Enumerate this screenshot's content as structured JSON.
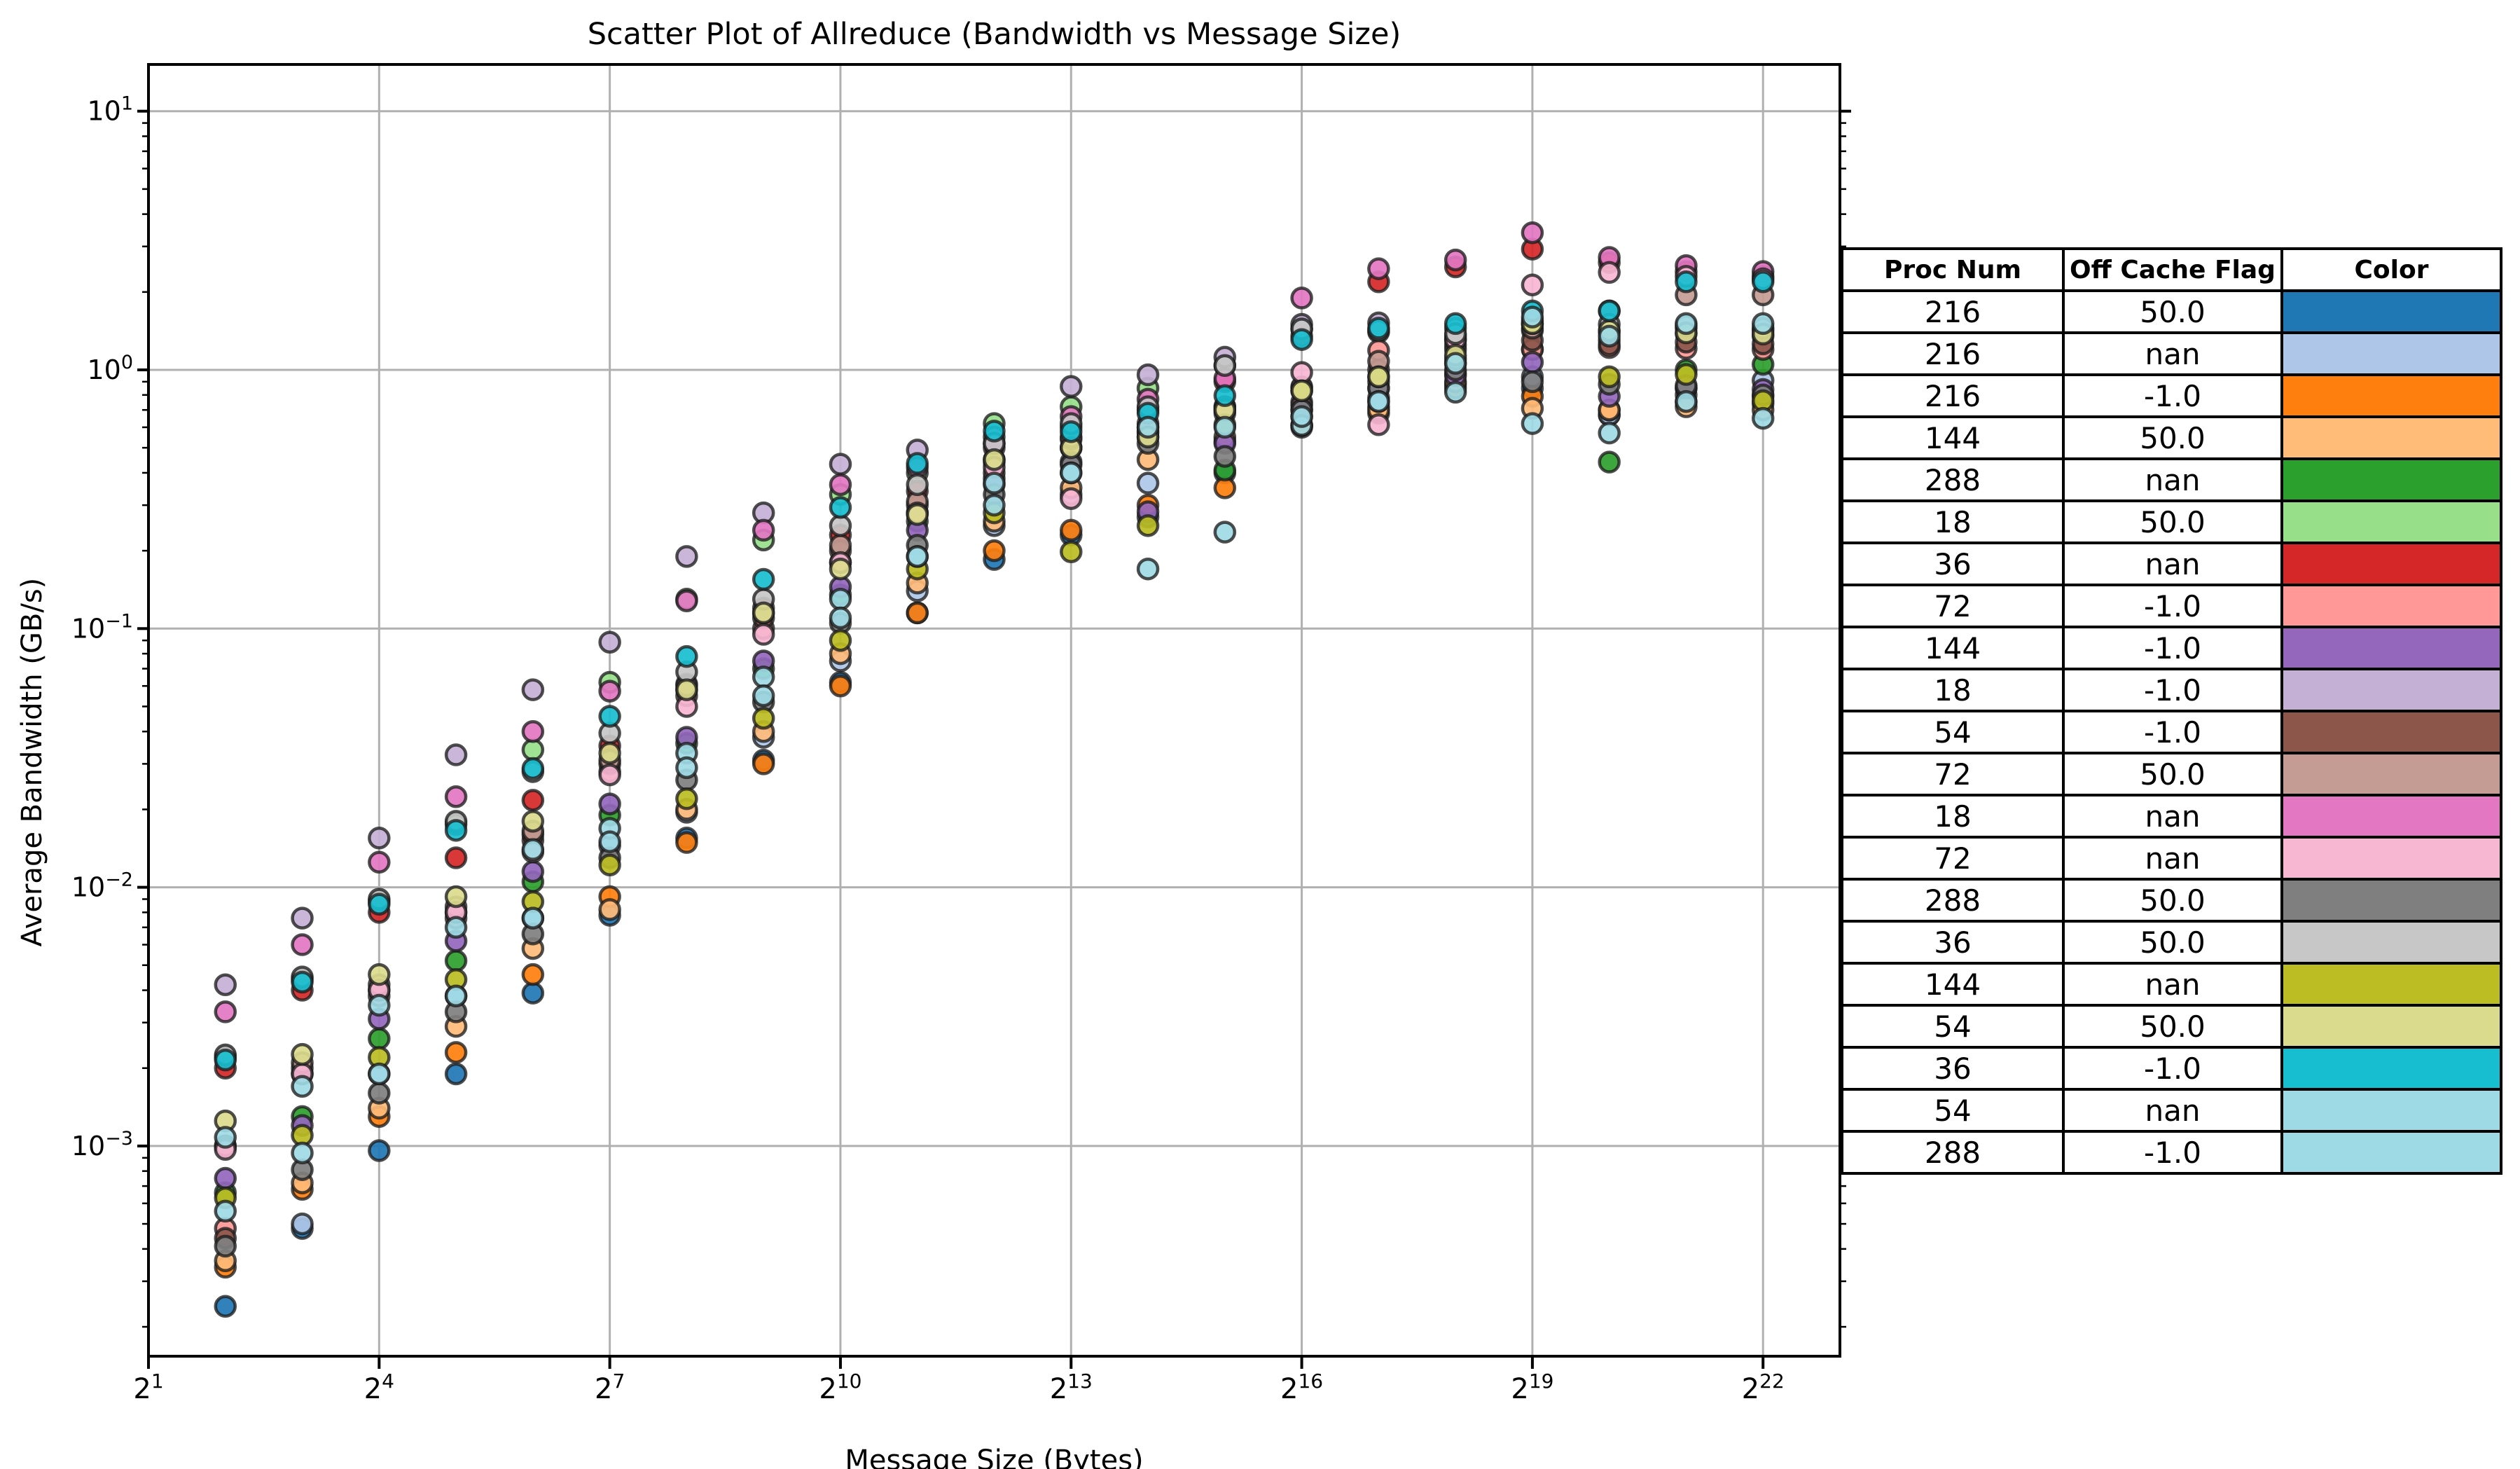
{
  "title": "Scatter Plot of Allreduce (Bandwidth vs Message Size)",
  "x_axis": {
    "label": "Message Size (Bytes)",
    "scale": "log2",
    "tick_exponents": [
      1,
      4,
      7,
      10,
      13,
      16,
      19,
      22
    ],
    "min_exponent": 1,
    "max_exponent": 23
  },
  "y_axis": {
    "label": "Average Bandwidth (GB/s)",
    "scale": "log10",
    "tick_exponents": [
      1,
      0,
      -1,
      -2,
      -3
    ],
    "min_value": 0.000155,
    "max_value": 15.0
  },
  "legend_table": {
    "headers": [
      "Proc Num",
      "Off Cache Flag",
      "Color"
    ]
  },
  "style": {
    "grid_color": "#b0b0b0",
    "spine_color": "#000000",
    "marker_edge_color": "#1c1c1c",
    "background": "#ffffff"
  },
  "chart_data": {
    "type": "scatter",
    "title": "Scatter Plot of Allreduce (Bandwidth vs Message Size)",
    "xlabel": "Message Size (Bytes)",
    "ylabel": "Average Bandwidth (GB/s)",
    "grid": true,
    "legend_position": "right-table",
    "xlim": [
      2,
      8388608
    ],
    "ylim": [
      0.000155,
      15.0
    ],
    "x": [
      4,
      8,
      16,
      32,
      64,
      128,
      256,
      512,
      1024,
      2048,
      4096,
      8192,
      16384,
      32768,
      65536,
      131072,
      262144,
      524288,
      1048576,
      2097152,
      4194304
    ],
    "series": [
      {
        "proc": "216",
        "flag": "50.0",
        "color": "#1f77b4",
        "values": [
          0.00024,
          0.00048,
          0.00096,
          0.0019,
          0.0039,
          0.0078,
          0.0155,
          0.031,
          0.062,
          0.115,
          0.185,
          0.23,
          0.27,
          0.4,
          0.6,
          0.78,
          0.88,
          0.85,
          0.67,
          0.8,
          0.79
        ]
      },
      {
        "proc": "216",
        "flag": "nan",
        "color": "#aec7e8",
        "values": [
          0.001,
          0.0005,
          0.0019,
          0.0038,
          0.0076,
          0.0145,
          0.0195,
          0.038,
          0.075,
          0.14,
          0.25,
          0.33,
          0.365,
          0.53,
          0.61,
          0.72,
          0.97,
          0.94,
          0.67,
          0.85,
          0.91
        ]
      },
      {
        "proc": "216",
        "flag": "-1.0",
        "color": "#ff7f0e",
        "values": [
          0.00034,
          0.00068,
          0.0013,
          0.0023,
          0.0046,
          0.0092,
          0.0149,
          0.03,
          0.06,
          0.115,
          0.2,
          0.24,
          0.3,
          0.35,
          0.61,
          0.68,
          0.85,
          0.79,
          0.7,
          0.75,
          0.74
        ]
      },
      {
        "proc": "144",
        "flag": "50.0",
        "color": "#ffbb78",
        "values": [
          0.00036,
          0.00072,
          0.0014,
          0.0029,
          0.0058,
          0.0082,
          0.02,
          0.04,
          0.08,
          0.15,
          0.26,
          0.35,
          0.45,
          0.55,
          0.66,
          0.7,
          0.9,
          0.71,
          0.7,
          0.72,
          0.7
        ]
      },
      {
        "proc": "288",
        "flag": "nan",
        "color": "#2ca02c",
        "values": [
          0.00066,
          0.0013,
          0.0026,
          0.0052,
          0.0105,
          0.019,
          0.036,
          0.07,
          0.135,
          0.26,
          0.38,
          0.5,
          0.58,
          0.41,
          0.75,
          0.9,
          1.06,
          1.2,
          0.44,
          1.0,
          1.05
        ]
      },
      {
        "proc": "18",
        "flag": "50.0",
        "color": "#98df8a",
        "values": [
          0.0022,
          0.0044,
          0.0088,
          0.0175,
          0.034,
          0.062,
          0.13,
          0.22,
          0.33,
          0.4,
          0.62,
          0.72,
          0.85,
          1.04,
          1.44,
          1.4,
          1.35,
          1.42,
          1.3,
          1.38,
          1.35
        ]
      },
      {
        "proc": "36",
        "flag": "nan",
        "color": "#d62728",
        "values": [
          0.002,
          0.004,
          0.008,
          0.013,
          0.0217,
          0.0352,
          0.061,
          0.12,
          0.23,
          0.34,
          0.5,
          0.6,
          0.7,
          0.9,
          1.35,
          2.19,
          2.5,
          2.93,
          2.6,
          2.4,
          2.3
        ]
      },
      {
        "proc": "72",
        "flag": "-1.0",
        "color": "#ff9896",
        "values": [
          0.00048,
          0.0019,
          0.0038,
          0.0076,
          0.0152,
          0.028,
          0.055,
          0.1,
          0.18,
          0.28,
          0.4,
          0.5,
          0.57,
          0.68,
          0.73,
          1.19,
          1.25,
          1.2,
          1.22,
          1.21,
          1.2
        ]
      },
      {
        "proc": "144",
        "flag": "-1.0",
        "color": "#9467bd",
        "values": [
          0.00075,
          0.0012,
          0.0031,
          0.0062,
          0.0115,
          0.021,
          0.038,
          0.075,
          0.145,
          0.24,
          0.36,
          0.44,
          0.283,
          0.52,
          0.7,
          0.85,
          0.95,
          1.07,
          0.79,
          0.85,
          0.84
        ]
      },
      {
        "proc": "18",
        "flag": "-1.0",
        "color": "#c5b0d5",
        "values": [
          0.0042,
          0.0076,
          0.0155,
          0.0325,
          0.058,
          0.0886,
          0.19,
          0.28,
          0.432,
          0.49,
          0.55,
          0.863,
          0.957,
          1.12,
          1.5,
          1.52,
          1.45,
          1.5,
          1.4,
          1.45,
          1.42
        ]
      },
      {
        "proc": "54",
        "flag": "-1.0",
        "color": "#8c564b",
        "values": [
          0.00044,
          0.002,
          0.004,
          0.008,
          0.016,
          0.03,
          0.058,
          0.11,
          0.2,
          0.3,
          0.44,
          0.54,
          0.62,
          0.72,
          0.85,
          1.0,
          1.2,
          1.3,
          1.25,
          1.28,
          1.26
        ]
      },
      {
        "proc": "72",
        "flag": "50.0",
        "color": "#c49c94",
        "values": [
          0.001,
          0.0021,
          0.0042,
          0.0084,
          0.0165,
          0.031,
          0.06,
          0.115,
          0.21,
          0.31,
          0.45,
          0.55,
          0.6,
          0.72,
          0.86,
          1.08,
          1.31,
          1.45,
          1.69,
          1.95,
          1.95
        ]
      },
      {
        "proc": "18",
        "flag": "nan",
        "color": "#e377c2",
        "values": [
          0.0033,
          0.006,
          0.0125,
          0.0224,
          0.04,
          0.0573,
          0.128,
          0.24,
          0.36,
          0.42,
          0.52,
          0.66,
          0.77,
          0.927,
          1.896,
          2.46,
          2.66,
          3.39,
          2.72,
          2.53,
          2.4
        ]
      },
      {
        "proc": "72",
        "flag": "nan",
        "color": "#f7b6d2",
        "values": [
          0.00097,
          0.0019,
          0.004,
          0.008,
          0.0137,
          0.0272,
          0.05,
          0.095,
          0.18,
          0.28,
          0.42,
          0.318,
          0.55,
          0.7,
          0.977,
          0.614,
          1.31,
          2.13,
          2.38,
          2.3,
          2.25
        ]
      },
      {
        "proc": "288",
        "flag": "50.0",
        "color": "#7f7f7f",
        "values": [
          0.00041,
          0.00081,
          0.0016,
          0.0033,
          0.0066,
          0.013,
          0.026,
          0.052,
          0.105,
          0.21,
          0.33,
          0.43,
          0.52,
          0.463,
          0.7,
          0.85,
          1.0,
          0.9,
          0.88,
          0.87,
          0.8
        ]
      },
      {
        "proc": "36",
        "flag": "50.0",
        "color": "#c7c7c7",
        "values": [
          0.00225,
          0.0045,
          0.009,
          0.018,
          0.028,
          0.0394,
          0.068,
          0.13,
          0.25,
          0.36,
          0.52,
          0.62,
          0.72,
          1.04,
          1.44,
          1.42,
          1.38,
          1.55,
          1.5,
          1.48,
          1.45
        ]
      },
      {
        "proc": "144",
        "flag": "nan",
        "color": "#bcbd22",
        "values": [
          0.00063,
          0.0011,
          0.0022,
          0.0044,
          0.0088,
          0.0122,
          0.022,
          0.045,
          0.09,
          0.17,
          0.28,
          0.198,
          0.25,
          0.614,
          0.83,
          0.94,
          1.1,
          1.51,
          0.94,
          0.96,
          0.76
        ]
      },
      {
        "proc": "54",
        "flag": "50.0",
        "color": "#dbdb8d",
        "values": [
          0.00125,
          0.00226,
          0.0046,
          0.0092,
          0.018,
          0.033,
          0.058,
          0.115,
          0.17,
          0.276,
          0.45,
          0.5,
          0.55,
          0.7,
          0.83,
          0.94,
          1.14,
          1.51,
          1.42,
          1.39,
          1.375
        ]
      },
      {
        "proc": "36",
        "flag": "-1.0",
        "color": "#17becf",
        "values": [
          0.00215,
          0.0043,
          0.0086,
          0.0166,
          0.0288,
          0.0458,
          0.078,
          0.155,
          0.294,
          0.435,
          0.58,
          0.577,
          0.68,
          0.795,
          1.31,
          1.45,
          1.51,
          1.69,
          1.69,
          2.19,
          2.19
        ]
      },
      {
        "proc": "54",
        "flag": "nan",
        "color": "#9edae5",
        "values": [
          0.00108,
          0.0017,
          0.0035,
          0.007,
          0.014,
          0.0169,
          0.033,
          0.065,
          0.13,
          0.19,
          0.365,
          0.4,
          0.6,
          0.236,
          0.61,
          0.755,
          1.06,
          1.6,
          1.35,
          1.51,
          1.51
        ]
      },
      {
        "proc": "288",
        "flag": "-1.0",
        "color": "#9edae5",
        "values": [
          0.00056,
          0.00094,
          0.0019,
          0.0038,
          0.0076,
          0.015,
          0.029,
          0.055,
          0.11,
          0.19,
          0.3,
          0.4,
          0.17,
          0.6,
          0.66,
          0.755,
          0.82,
          0.62,
          0.57,
          0.755,
          0.65
        ]
      }
    ]
  }
}
